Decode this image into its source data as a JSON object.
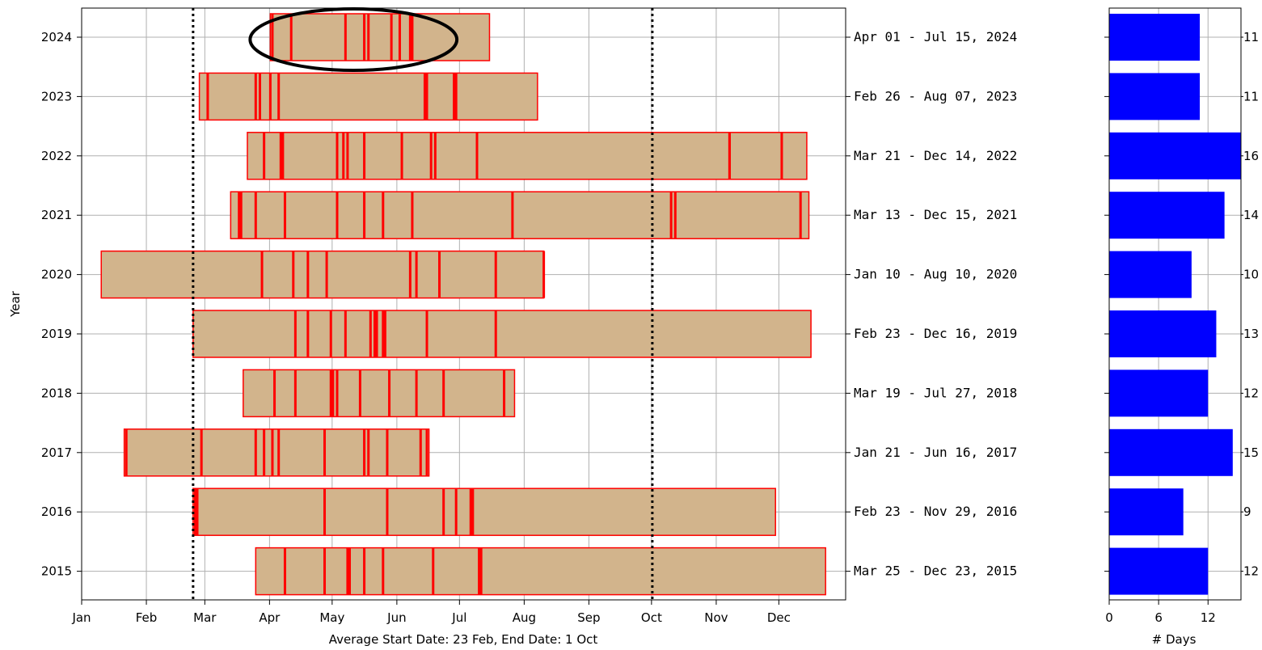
{
  "chart_data": [
    {
      "type": "bar",
      "orientation": "horizontal-range",
      "ylabel": "Year",
      "xlabel": "Average Start Date: 23 Feb, End Date: 1 Oct",
      "x_tick_labels": [
        "Jan",
        "Feb",
        "Mar",
        "Apr",
        "May",
        "Jun",
        "Jul",
        "Aug",
        "Sep",
        "Oct",
        "Nov",
        "Dec"
      ],
      "reference_lines": [
        "Feb 23",
        "Oct 01"
      ],
      "grid": true,
      "highlight": "2024",
      "colors": {
        "bar_fill": "#d2b48c",
        "bar_edge": "#ff0000",
        "event": "#ff0000",
        "reference": "#000000",
        "highlight": "#000000"
      },
      "series": [
        {
          "year": "2024",
          "label": "Apr 01 - Jul 15, 2024",
          "start": "2024-04-01",
          "end": "2024-07-15",
          "events": [
            "04-02",
            "04-11",
            "05-07",
            "05-16",
            "05-18",
            "05-29",
            "06-02",
            "06-07",
            "06-08"
          ]
        },
        {
          "year": "2023",
          "label": "Feb 26 - Aug 07, 2023",
          "start": "2023-02-26",
          "end": "2023-08-07",
          "events": [
            "03-02",
            "03-25",
            "03-27",
            "04-01",
            "04-05",
            "06-14",
            "06-15",
            "06-28",
            "06-29"
          ]
        },
        {
          "year": "2022",
          "label": "Mar 21 - Dec 14, 2022",
          "start": "2022-03-21",
          "end": "2022-12-14",
          "events": [
            "03-29",
            "04-06",
            "04-07",
            "05-03",
            "05-06",
            "05-08",
            "05-16",
            "06-03",
            "06-17",
            "06-19",
            "07-09",
            "11-07",
            "11-07",
            "12-02"
          ]
        },
        {
          "year": "2021",
          "label": "Mar 13 - Dec 15, 2021",
          "start": "2021-03-13",
          "end": "2021-12-15",
          "events": [
            "03-17",
            "03-18",
            "03-25",
            "04-08",
            "05-03",
            "05-16",
            "05-25",
            "06-08",
            "07-26",
            "10-10",
            "10-12",
            "12-11"
          ]
        },
        {
          "year": "2020",
          "label": "Jan 10 - Aug 10, 2020",
          "start": "2020-01-10",
          "end": "2020-08-10",
          "events": [
            "03-28",
            "04-12",
            "04-19",
            "04-28",
            "06-07",
            "06-10",
            "06-21",
            "07-18",
            "08-10"
          ]
        },
        {
          "year": "2019",
          "label": "Feb 23 - Dec 16, 2019",
          "start": "2019-02-23",
          "end": "2019-12-16",
          "events": [
            "04-13",
            "04-19",
            "04-30",
            "05-07",
            "05-19",
            "05-21",
            "05-22",
            "05-25",
            "05-26",
            "06-15",
            "07-18"
          ]
        },
        {
          "year": "2018",
          "label": "Mar 19 - Jul 27, 2018",
          "start": "2018-03-19",
          "end": "2018-07-27",
          "events": [
            "04-03",
            "04-13",
            "04-30",
            "05-01",
            "05-03",
            "05-14",
            "05-28",
            "06-10",
            "06-23",
            "07-22"
          ]
        },
        {
          "year": "2017",
          "label": "Jan 21 - Jun 16, 2017",
          "start": "2017-01-21",
          "end": "2017-06-16",
          "events": [
            "01-22",
            "02-27",
            "03-25",
            "03-29",
            "04-02",
            "04-05",
            "04-27",
            "05-16",
            "05-18",
            "05-27",
            "06-12",
            "06-15"
          ]
        },
        {
          "year": "2016",
          "label": "Feb 23 - Nov 29, 2016",
          "start": "2016-02-23",
          "end": "2016-11-29",
          "events": [
            "02-24",
            "02-25",
            "04-27",
            "05-27",
            "06-23",
            "06-29",
            "07-06",
            "07-07"
          ]
        },
        {
          "year": "2015",
          "label": "Mar 25 - Dec 23, 2015",
          "start": "2015-03-25",
          "end": "2015-12-23",
          "events": [
            "04-08",
            "04-27",
            "05-08",
            "05-09",
            "05-16",
            "05-25",
            "06-18",
            "07-10",
            "07-11"
          ]
        }
      ]
    },
    {
      "type": "bar",
      "orientation": "horizontal",
      "xlabel": "# Days",
      "ylabel": "",
      "xticks": [
        0,
        6,
        12
      ],
      "xlim": [
        0,
        16
      ],
      "grid": true,
      "color": "#0000ff",
      "categories": [
        "2024",
        "2023",
        "2022",
        "2021",
        "2020",
        "2019",
        "2018",
        "2017",
        "2016",
        "2015"
      ],
      "values": [
        11,
        11,
        16,
        14,
        10,
        13,
        12,
        15,
        9,
        12
      ]
    }
  ]
}
